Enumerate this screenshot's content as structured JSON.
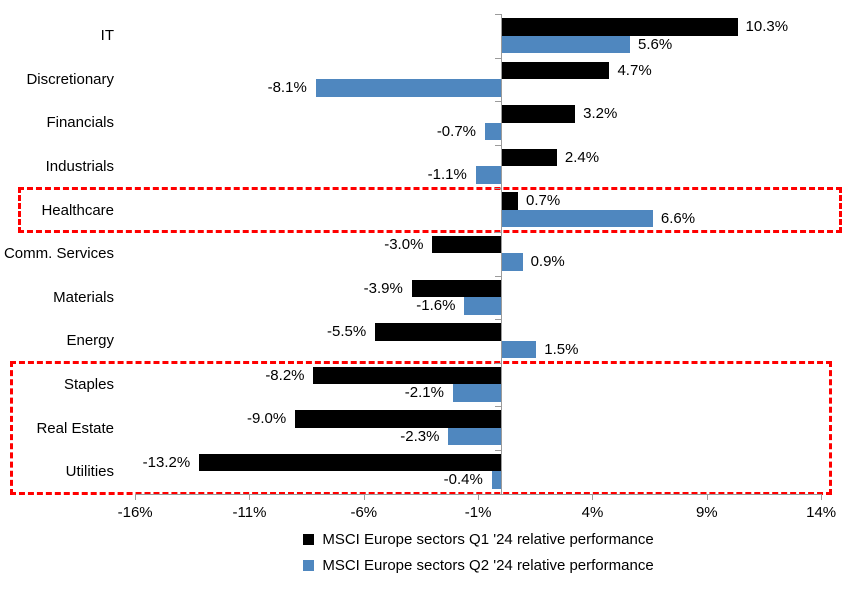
{
  "chart_data": {
    "type": "bar",
    "orientation": "horizontal",
    "title": "",
    "xlabel": "",
    "ylabel": "",
    "categories": [
      "IT",
      "Discretionary",
      "Financials",
      "Industrials",
      "Healthcare",
      "Comm. Services",
      "Materials",
      "Energy",
      "Staples",
      "Real Estate",
      "Utilities"
    ],
    "series": [
      {
        "name": "MSCI Europe sectors Q1 '24 relative performance",
        "color": "#000000",
        "values": [
          10.3,
          4.7,
          3.2,
          2.4,
          0.7,
          -3.0,
          -3.9,
          -5.5,
          -8.2,
          -9.0,
          -13.2
        ],
        "value_labels": [
          "10.3%",
          "4.7%",
          "3.2%",
          "2.4%",
          "0.7%",
          "-3.0%",
          "-3.9%",
          "-5.5%",
          "-8.2%",
          "-9.0%",
          "-13.2%"
        ]
      },
      {
        "name": "MSCI Europe sectors Q2 '24 relative performance",
        "color": "#4f87bf",
        "values": [
          5.6,
          -8.1,
          -0.7,
          -1.1,
          6.6,
          0.9,
          -1.6,
          1.5,
          -2.1,
          -2.3,
          -0.4
        ],
        "value_labels": [
          "5.6%",
          "-8.1%",
          "-0.7%",
          "-1.1%",
          "6.6%",
          "0.9%",
          "-1.6%",
          "1.5%",
          "-2.1%",
          "-2.3%",
          "-0.4%"
        ]
      }
    ],
    "xlim": [
      -16,
      14
    ],
    "x_tick_values": [
      -16,
      -11,
      -6,
      -1,
      4,
      9,
      14
    ],
    "x_tick_labels": [
      "-16%",
      "-11%",
      "-6%",
      "-1%",
      "4%",
      "9%",
      "14%"
    ],
    "grid": false,
    "legend_position": "bottom",
    "axis_color": "#9b9b9b",
    "highlight_color": "#ff0000",
    "highlights": [
      {
        "name": "healthcare-highlight",
        "categories": [
          "Healthcare"
        ]
      },
      {
        "name": "defensives-highlight",
        "categories": [
          "Staples",
          "Real Estate",
          "Utilities"
        ]
      }
    ]
  }
}
